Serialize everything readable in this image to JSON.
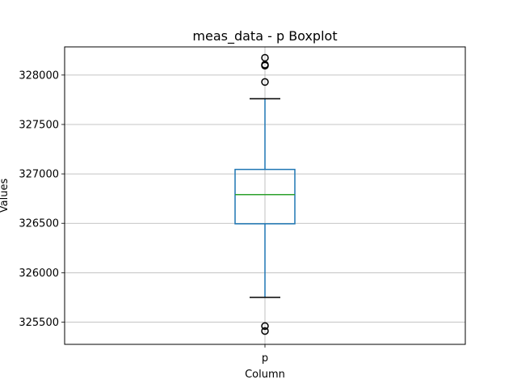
{
  "chart_data": {
    "type": "box",
    "title": "meas_data - p Boxplot",
    "xlabel": "Column",
    "ylabel": "Values",
    "categories": [
      "p"
    ],
    "ylim": [
      325275,
      328285
    ],
    "yticks": [
      325500,
      326000,
      326500,
      327000,
      327500,
      328000
    ],
    "grid": true,
    "boxes": [
      {
        "category": "p",
        "whisker_low": 325750,
        "q1": 326495,
        "median": 326790,
        "q3": 327045,
        "whisker_high": 327760,
        "outliers": [
          328175,
          328105,
          328095,
          327930,
          325460,
          325410
        ]
      }
    ],
    "colors": {
      "box": "#1f77b4",
      "whisker": "#1f77b4",
      "cap": "#000000",
      "median": "#2ca02c",
      "outlier": "#000000",
      "grid": "#b0b0b0"
    }
  }
}
